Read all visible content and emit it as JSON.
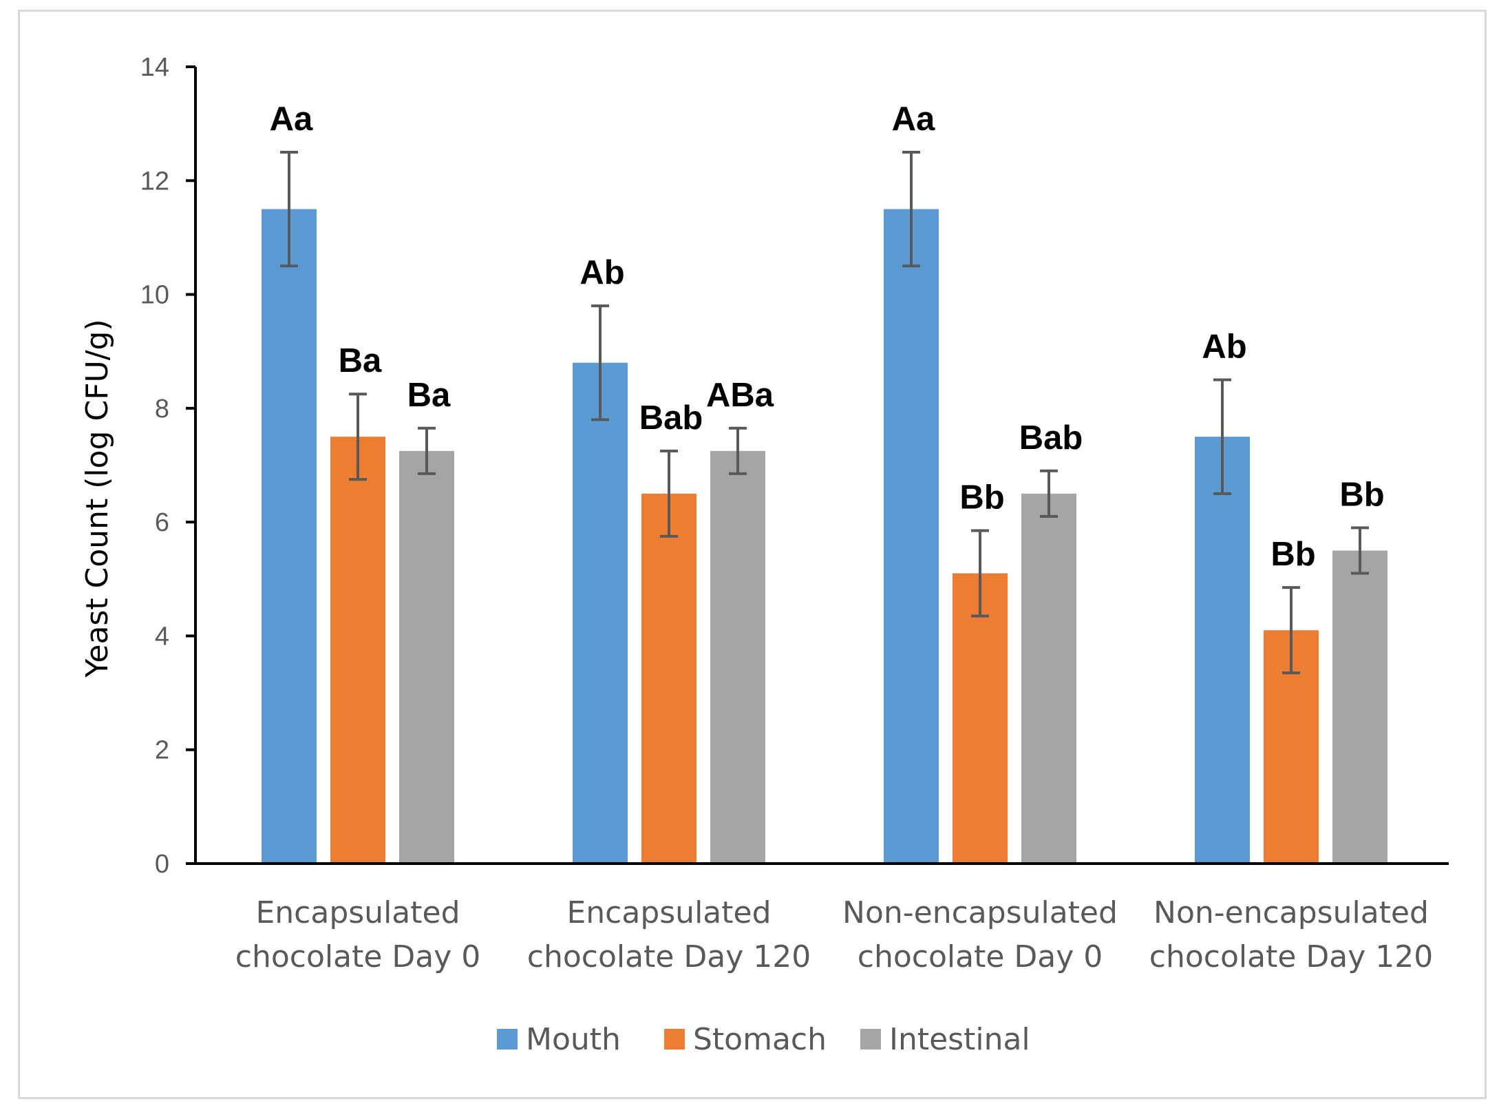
{
  "chart_data": {
    "type": "bar",
    "title": "",
    "xlabel": "",
    "ylabel": "Yeast Count (log CFU/g)",
    "ylim": [
      0,
      14
    ],
    "yticks": [
      0,
      2,
      4,
      6,
      8,
      10,
      12,
      14
    ],
    "grid": false,
    "legend_position": "bottom",
    "categories": [
      [
        "Encapsulated",
        "chocolate Day 0"
      ],
      [
        "Encapsulated",
        "chocolate Day 120"
      ],
      [
        "Non-encapsulated",
        "chocolate Day 0"
      ],
      [
        "Non-encapsulated",
        "chocolate Day 120"
      ]
    ],
    "series": [
      {
        "name": "Mouth",
        "color": "#5b9bd5",
        "values": [
          11.5,
          8.8,
          11.5,
          7.5
        ],
        "errors": [
          1.0,
          1.0,
          1.0,
          1.0
        ],
        "labels": [
          "Aa",
          "Ab",
          "Aa",
          "Ab"
        ]
      },
      {
        "name": "Stomach",
        "color": "#ed7d31",
        "values": [
          7.5,
          6.5,
          5.1,
          4.1
        ],
        "errors": [
          0.75,
          0.75,
          0.75,
          0.75
        ],
        "labels": [
          "Ba",
          "Bab",
          "Bb",
          "Bb"
        ]
      },
      {
        "name": "Intestinal",
        "color": "#a5a5a5",
        "values": [
          7.25,
          7.25,
          6.5,
          5.5
        ],
        "errors": [
          0.4,
          0.4,
          0.4,
          0.4
        ],
        "labels": [
          "Ba",
          "ABa",
          "Bab",
          "Bb"
        ]
      }
    ]
  }
}
